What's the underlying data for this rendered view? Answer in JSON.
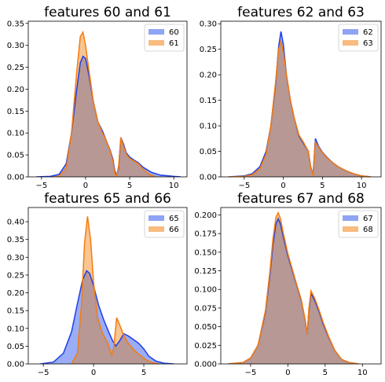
{
  "colors": {
    "series_a": "#1f3fe6",
    "series_a_fill": "#8fa4f5",
    "series_b": "#f57c0e",
    "series_b_fill": "#f8bb80",
    "overlap_fill": "#b79894"
  },
  "chart_data": [
    {
      "type": "area",
      "title": "features 60 and 61",
      "xlim": [
        -6.5,
        11.5
      ],
      "ylim": [
        0,
        0.355
      ],
      "xticks": [
        -5,
        0,
        5,
        10
      ],
      "yticks": [
        0.0,
        0.05,
        0.1,
        0.15,
        0.2,
        0.25,
        0.3,
        0.35
      ],
      "legend": "top-right",
      "series": [
        {
          "name": "60",
          "x": [
            -5.6,
            -4,
            -3,
            -2.2,
            -1.6,
            -1.0,
            -0.6,
            -0.3,
            0,
            0.4,
            0.9,
            1.4,
            1.9,
            2.3,
            2.8,
            3.1,
            3.3,
            3.5,
            3.75,
            4.0,
            4.3,
            4.6,
            5.0,
            5.5,
            6.0,
            6.5,
            7.5,
            8.5,
            10,
            10.8
          ],
          "y": [
            0.0,
            0.001,
            0.006,
            0.03,
            0.1,
            0.2,
            0.26,
            0.275,
            0.27,
            0.23,
            0.17,
            0.125,
            0.105,
            0.085,
            0.06,
            0.04,
            0.015,
            0.003,
            0.02,
            0.09,
            0.075,
            0.055,
            0.045,
            0.038,
            0.032,
            0.022,
            0.01,
            0.004,
            0.001,
            0.0
          ]
        },
        {
          "name": "61",
          "x": [
            -3.6,
            -3,
            -2.2,
            -1.6,
            -1.0,
            -0.6,
            -0.3,
            0,
            0.4,
            0.9,
            1.4,
            1.9,
            2.3,
            2.8,
            3.1,
            3.3,
            3.5,
            3.75,
            4.0,
            4.3,
            4.6,
            5.0,
            5.5,
            6.0,
            6.5,
            7.2,
            8.0
          ],
          "y": [
            0.0,
            0.002,
            0.02,
            0.1,
            0.24,
            0.32,
            0.33,
            0.3,
            0.24,
            0.17,
            0.125,
            0.1,
            0.085,
            0.058,
            0.035,
            0.01,
            0.0,
            0.025,
            0.09,
            0.07,
            0.052,
            0.042,
            0.036,
            0.03,
            0.018,
            0.006,
            0.0
          ]
        }
      ]
    },
    {
      "type": "area",
      "title": "features 62 and 63",
      "xlim": [
        -8,
        12.5
      ],
      "ylim": [
        0,
        0.305
      ],
      "xticks": [
        -5,
        0,
        5,
        10
      ],
      "yticks": [
        0.0,
        0.05,
        0.1,
        0.15,
        0.2,
        0.25,
        0.3
      ],
      "legend": "top-right",
      "series": [
        {
          "name": "62",
          "x": [
            -7,
            -5,
            -4,
            -3,
            -2.2,
            -1.6,
            -1.0,
            -0.6,
            -0.3,
            0,
            0.4,
            0.9,
            1.4,
            2.0,
            2.6,
            3.2,
            3.5,
            3.8,
            4.1,
            4.5,
            5.0,
            5.6,
            6.3,
            7.0,
            8.0,
            9.0,
            10,
            11.2
          ],
          "y": [
            0.0,
            0.002,
            0.006,
            0.02,
            0.05,
            0.1,
            0.18,
            0.255,
            0.285,
            0.26,
            0.2,
            0.15,
            0.115,
            0.08,
            0.065,
            0.05,
            0.02,
            0.004,
            0.075,
            0.06,
            0.048,
            0.038,
            0.028,
            0.02,
            0.012,
            0.006,
            0.002,
            0.0
          ]
        },
        {
          "name": "63",
          "x": [
            -7,
            -5,
            -4,
            -3,
            -2.2,
            -1.6,
            -1.0,
            -0.6,
            -0.3,
            0,
            0.4,
            0.9,
            1.4,
            2.0,
            2.6,
            3.2,
            3.5,
            3.8,
            4.1,
            4.5,
            5.0,
            5.6,
            6.3,
            7.0,
            8.0,
            9.0,
            10,
            11.2
          ],
          "y": [
            0.0,
            0.001,
            0.004,
            0.016,
            0.045,
            0.1,
            0.185,
            0.25,
            0.265,
            0.245,
            0.2,
            0.15,
            0.115,
            0.082,
            0.067,
            0.05,
            0.018,
            0.003,
            0.068,
            0.058,
            0.047,
            0.037,
            0.028,
            0.02,
            0.012,
            0.006,
            0.002,
            0.0
          ]
        }
      ]
    },
    {
      "type": "area",
      "title": "features 65 and 66",
      "xlim": [
        -6.5,
        9.3
      ],
      "ylim": [
        0,
        0.44
      ],
      "xticks": [
        -5,
        0,
        5
      ],
      "yticks": [
        0.0,
        0.05,
        0.1,
        0.15,
        0.2,
        0.25,
        0.3,
        0.35,
        0.4
      ],
      "legend": "top-right",
      "series": [
        {
          "name": "65",
          "x": [
            -5.3,
            -4.0,
            -3.0,
            -2.2,
            -1.6,
            -1.1,
            -0.7,
            -0.4,
            0,
            0.5,
            1.0,
            1.5,
            1.9,
            2.2,
            2.6,
            3.0,
            3.5,
            4.0,
            4.5,
            5.0,
            5.5,
            6.2,
            7.0,
            8.0
          ],
          "y": [
            0.0,
            0.005,
            0.03,
            0.09,
            0.17,
            0.235,
            0.262,
            0.255,
            0.22,
            0.165,
            0.125,
            0.09,
            0.065,
            0.05,
            0.065,
            0.085,
            0.078,
            0.068,
            0.058,
            0.042,
            0.022,
            0.008,
            0.002,
            0.0
          ]
        },
        {
          "name": "66",
          "x": [
            -2.2,
            -1.6,
            -1.2,
            -0.9,
            -0.6,
            -0.3,
            0,
            0.4,
            0.9,
            1.4,
            1.8,
            2.0,
            2.3,
            2.6,
            3.0,
            3.4,
            4.0,
            4.6,
            5.2,
            5.8,
            6.5
          ],
          "y": [
            0.0,
            0.03,
            0.17,
            0.34,
            0.415,
            0.35,
            0.23,
            0.13,
            0.085,
            0.06,
            0.025,
            0.045,
            0.13,
            0.11,
            0.08,
            0.06,
            0.04,
            0.025,
            0.012,
            0.004,
            0.0
          ]
        }
      ]
    },
    {
      "type": "area",
      "title": "features 67 and 68",
      "xlim": [
        -9,
        12.5
      ],
      "ylim": [
        0,
        0.21
      ],
      "xticks": [
        -5,
        0,
        5,
        10
      ],
      "yticks": [
        0.0,
        0.025,
        0.05,
        0.075,
        0.1,
        0.125,
        0.15,
        0.175,
        0.2
      ],
      "legend": "top-right",
      "series": [
        {
          "name": "67",
          "x": [
            -8,
            -6,
            -5,
            -4,
            -3,
            -2.4,
            -2.0,
            -1.6,
            -1.3,
            -1.0,
            -0.6,
            0,
            0.6,
            1.2,
            1.8,
            2.3,
            2.6,
            2.8,
            3.1,
            3.6,
            4.2,
            4.8,
            5.5,
            6.3,
            7.2,
            8.2,
            9.5
          ],
          "y": [
            0.0,
            0.002,
            0.008,
            0.025,
            0.07,
            0.12,
            0.16,
            0.188,
            0.195,
            0.188,
            0.17,
            0.145,
            0.125,
            0.105,
            0.085,
            0.06,
            0.04,
            0.07,
            0.095,
            0.085,
            0.07,
            0.052,
            0.035,
            0.018,
            0.006,
            0.002,
            0.0
          ]
        },
        {
          "name": "68",
          "x": [
            -8,
            -6,
            -5,
            -4,
            -3,
            -2.4,
            -2.0,
            -1.6,
            -1.3,
            -1.0,
            -0.6,
            0,
            0.6,
            1.2,
            1.8,
            2.3,
            2.6,
            2.8,
            3.1,
            3.6,
            4.2,
            4.8,
            5.5,
            6.3,
            7.2,
            8.2,
            9.5
          ],
          "y": [
            0.0,
            0.002,
            0.008,
            0.025,
            0.072,
            0.125,
            0.168,
            0.197,
            0.203,
            0.195,
            0.175,
            0.148,
            0.127,
            0.106,
            0.086,
            0.06,
            0.04,
            0.073,
            0.098,
            0.088,
            0.072,
            0.054,
            0.036,
            0.018,
            0.006,
            0.002,
            0.0
          ]
        }
      ]
    }
  ]
}
